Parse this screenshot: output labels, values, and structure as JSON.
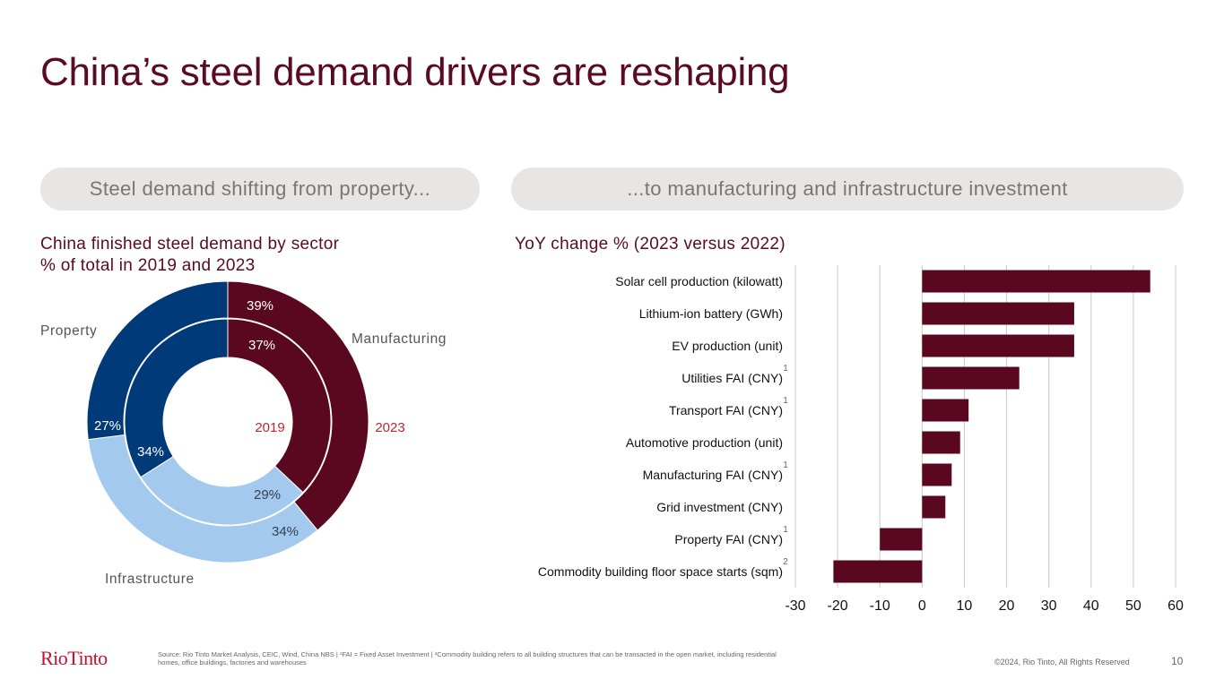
{
  "slide": {
    "title": "China’s steel demand drivers are reshaping",
    "left_header": "Steel demand shifting from property...",
    "right_header": "...to manufacturing and infrastructure investment",
    "page_number": "10"
  },
  "footer": {
    "logo": "RioTinto",
    "source": "Source: Rio Tinto Market Analysis, CEIC, Wind, China NBS | ¹FAI = Fixed Asset Investment  | ²Commodity building refers to all building structures that can be transacted in the open market, including residential homes, office buildings, factories and warehouses",
    "copyright": "©2024, Rio Tinto, All Rights Reserved"
  },
  "colors": {
    "manufacturing": "#5a0820",
    "property": "#003a78",
    "infrastructure": "#a3caee",
    "bar": "#5a0820",
    "year_label": "#c0282d"
  },
  "chart_data": [
    {
      "type": "pie",
      "variant": "double-donut",
      "title": "China finished steel demand by sector",
      "subtitle": "% of total in 2019 and 2023",
      "categories": [
        "Manufacturing",
        "Infrastructure",
        "Property"
      ],
      "series": [
        {
          "name": "2019",
          "ring": "inner",
          "values": [
            37,
            29,
            34
          ],
          "labels": [
            "37%",
            "29%",
            "34%"
          ]
        },
        {
          "name": "2023",
          "ring": "outer",
          "values": [
            39,
            34,
            27
          ],
          "labels": [
            "39%",
            "34%",
            "27%"
          ]
        }
      ],
      "legend": "category labels placed around the ring"
    },
    {
      "type": "bar",
      "orientation": "horizontal",
      "title": "YoY change % (2023 versus 2022)",
      "categories": [
        "Solar cell production (kilowatt)",
        "Lithium-ion battery (GWh)",
        "EV production (unit)",
        "Utilities FAI (CNY)",
        "Transport FAI (CNY)",
        "Automotive production (unit)",
        "Manufacturing FAI (CNY)",
        "Grid investment (CNY)",
        "Property FAI (CNY)",
        "Commodity building floor space starts (sqm)"
      ],
      "footnotes": [
        "",
        "",
        "",
        "1",
        "1",
        "",
        "1",
        "",
        "1",
        "2"
      ],
      "values": [
        54,
        36,
        36,
        23,
        11,
        9,
        7,
        5.5,
        -10,
        -21
      ],
      "xlim": [
        -30,
        60
      ],
      "xticks": [
        -30,
        -20,
        -10,
        0,
        10,
        20,
        30,
        40,
        50,
        60
      ],
      "xlabel": "",
      "ylabel": "",
      "grid": true
    }
  ]
}
